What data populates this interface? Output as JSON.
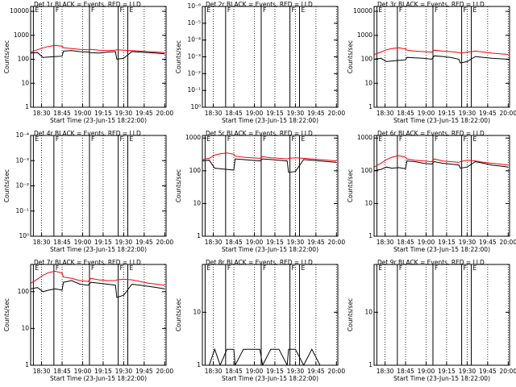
{
  "chart_data": [
    {
      "type": "line",
      "title": "Det 1r BLACK = Events, RED = LLD",
      "ylabel": "Counts/sec",
      "xlabel": "Start Time (23-Jun-15 18:22:00)",
      "log_y": true,
      "xlim": [
        "18:22",
        "20:01"
      ],
      "xticks": [
        "18:30",
        "18:45",
        "19:00",
        "19:15",
        "19:30",
        "19:45",
        "20:00"
      ],
      "ylim": [
        1,
        16000
      ],
      "yticks": [
        1,
        10,
        100,
        1000,
        10000
      ],
      "x": [
        "18:22",
        "18:27",
        "18:31",
        "18:35",
        "18:40",
        "18:45",
        "18:46",
        "18:52",
        "18:58",
        "19:04",
        "19:06",
        "19:12",
        "19:18",
        "19:24",
        "19:25",
        "19:30",
        "19:36",
        "19:42",
        "19:48",
        "19:54",
        "20:00"
      ],
      "series": [
        {
          "name": "Events",
          "color": "#000000",
          "values": [
            180,
            190,
            120,
            125,
            130,
            135,
            220,
            230,
            210,
            200,
            190,
            180,
            200,
            210,
            100,
            110,
            210,
            200,
            190,
            180,
            170
          ]
        },
        {
          "name": "LLD",
          "color": "#ff0000",
          "values": [
            200,
            250,
            300,
            340,
            380,
            350,
            300,
            280,
            260,
            250,
            260,
            240,
            230,
            240,
            250,
            240,
            230,
            220,
            210,
            200,
            190
          ]
        }
      ],
      "annotations": [
        {
          "x": "18:24",
          "text": "E"
        },
        {
          "x": "18:39",
          "text": "F"
        },
        {
          "x": "19:05",
          "text": "F"
        },
        {
          "x": "19:26",
          "text": "F"
        },
        {
          "x": "19:33",
          "text": "E"
        }
      ]
    },
    {
      "type": "line",
      "title": "Det 2r BLACK = Events, RED = LLD",
      "ylabel": "Counts/sec",
      "xlabel": "Start Time (23-Jun-15 18:22:00)",
      "log_y": true,
      "xlim": [
        "18:22",
        "20:01"
      ],
      "xticks": [
        "18:30",
        "18:45",
        "19:00",
        "19:15",
        "19:30",
        "19:45",
        "20:00"
      ],
      "ylim": [
        1,
        1e-06
      ],
      "yticks": [
        {
          "value": 1,
          "label": "10⁰"
        },
        {
          "value": 0.1,
          "label": "10⁻¹"
        },
        {
          "value": 0.01,
          "label": "10⁻²"
        },
        {
          "value": 0.001,
          "label": "10⁻³"
        },
        {
          "value": 0.0001,
          "label": "10⁻⁴"
        },
        {
          "value": 1e-05,
          "label": "10⁻⁵"
        },
        {
          "value": 1e-06,
          "label": "10⁻⁶"
        }
      ],
      "x": [],
      "series": [],
      "annotations": [
        {
          "x": "18:24",
          "text": "E"
        },
        {
          "x": "18:39",
          "text": "F"
        },
        {
          "x": "19:05",
          "text": "F"
        },
        {
          "x": "19:26",
          "text": "F"
        },
        {
          "x": "19:33",
          "text": "E"
        }
      ]
    },
    {
      "type": "line",
      "title": "Det 3r BLACK = Events, RED = LLD",
      "ylabel": "Counts/sec",
      "xlabel": "Start Time (23-Jun-15 18:22:00)",
      "log_y": true,
      "xlim": [
        "18:22",
        "20:01"
      ],
      "xticks": [
        "18:30",
        "18:45",
        "19:00",
        "19:15",
        "19:30",
        "19:45",
        "20:00"
      ],
      "ylim": [
        1,
        16000
      ],
      "yticks": [
        1,
        10,
        100,
        1000,
        10000
      ],
      "x": [
        "18:22",
        "18:27",
        "18:31",
        "18:35",
        "18:40",
        "18:45",
        "18:46",
        "18:52",
        "18:58",
        "19:04",
        "19:06",
        "19:12",
        "19:18",
        "19:24",
        "19:25",
        "19:30",
        "19:36",
        "19:42",
        "19:48",
        "19:54",
        "20:00"
      ],
      "series": [
        {
          "name": "Events",
          "color": "#000000",
          "values": [
            100,
            110,
            80,
            85,
            90,
            95,
            120,
            115,
            110,
            100,
            140,
            130,
            120,
            100,
            70,
            80,
            130,
            120,
            110,
            105,
            100
          ]
        },
        {
          "name": "LLD",
          "color": "#ff0000",
          "values": [
            160,
            200,
            250,
            280,
            300,
            270,
            240,
            220,
            210,
            200,
            240,
            220,
            210,
            190,
            180,
            200,
            220,
            200,
            180,
            170,
            160
          ]
        }
      ],
      "annotations": [
        {
          "x": "18:24",
          "text": "E"
        },
        {
          "x": "18:39",
          "text": "F"
        },
        {
          "x": "19:05",
          "text": "F"
        },
        {
          "x": "19:26",
          "text": "F"
        },
        {
          "x": "19:33",
          "text": "E"
        }
      ]
    },
    {
      "type": "line",
      "title": "Det 4r BLACK = Events, RED = LLD",
      "ylabel": "Counts/sec",
      "xlabel": "Start Time (23-Jun-15 18:22:00)",
      "log_y": true,
      "xlim": [
        "18:22",
        "20:01"
      ],
      "xticks": [
        "18:30",
        "18:45",
        "19:00",
        "19:15",
        "19:30",
        "19:45",
        "20:00"
      ],
      "ylim": [
        1,
        0.0001
      ],
      "yticks": [
        {
          "value": 1,
          "label": "10⁰"
        },
        {
          "value": 0.1,
          "label": "10⁻¹"
        },
        {
          "value": 0.01,
          "label": "10⁻²"
        },
        {
          "value": 0.001,
          "label": "10⁻³"
        },
        {
          "value": 0.0001,
          "label": "10⁻⁴"
        }
      ],
      "x": [],
      "series": [],
      "annotations": [
        {
          "x": "18:24",
          "text": "E"
        },
        {
          "x": "18:39",
          "text": "F"
        },
        {
          "x": "19:05",
          "text": "F"
        },
        {
          "x": "19:26",
          "text": "F"
        },
        {
          "x": "19:33",
          "text": "E"
        }
      ]
    },
    {
      "type": "line",
      "title": "Det 5r BLACK = Events, RED = LLD",
      "ylabel": "Counts/sec",
      "xlabel": "Start Time (23-Jun-15 18:22:00)",
      "log_y": true,
      "xlim": [
        "18:22",
        "20:01"
      ],
      "xticks": [
        "18:30",
        "18:45",
        "19:00",
        "19:15",
        "19:30",
        "19:45",
        "20:00"
      ],
      "ylim": [
        1,
        1200
      ],
      "yticks": [
        1,
        10,
        100,
        1000
      ],
      "x": [
        "18:22",
        "18:27",
        "18:31",
        "18:35",
        "18:40",
        "18:45",
        "18:46",
        "18:52",
        "18:58",
        "19:04",
        "19:06",
        "19:12",
        "19:18",
        "19:24",
        "19:25",
        "19:30",
        "19:36",
        "19:42",
        "19:48",
        "19:54",
        "20:00"
      ],
      "series": [
        {
          "name": "Events",
          "color": "#000000",
          "values": [
            200,
            210,
            120,
            115,
            110,
            105,
            230,
            220,
            210,
            200,
            230,
            220,
            210,
            200,
            90,
            95,
            220,
            210,
            200,
            190,
            180
          ]
        },
        {
          "name": "LLD",
          "color": "#ff0000",
          "values": [
            220,
            240,
            300,
            330,
            350,
            320,
            280,
            260,
            250,
            240,
            270,
            250,
            240,
            230,
            240,
            250,
            240,
            230,
            220,
            210,
            200
          ]
        }
      ],
      "annotations": [
        {
          "x": "18:24",
          "text": "E"
        },
        {
          "x": "18:39",
          "text": "F"
        },
        {
          "x": "19:05",
          "text": "F"
        },
        {
          "x": "19:26",
          "text": "F"
        },
        {
          "x": "19:33",
          "text": "E"
        }
      ]
    },
    {
      "type": "line",
      "title": "Det 6r BLACK = Events, RED = LLD",
      "ylabel": "Counts/sec",
      "xlabel": "Start Time (23-Jun-15 18:22:00)",
      "log_y": true,
      "xlim": [
        "18:22",
        "20:01"
      ],
      "xticks": [
        "18:30",
        "18:45",
        "19:00",
        "19:15",
        "19:30",
        "19:45",
        "20:00"
      ],
      "ylim": [
        1,
        1200
      ],
      "yticks": [
        1,
        10,
        100,
        1000
      ],
      "x": [
        "18:22",
        "18:27",
        "18:31",
        "18:35",
        "18:40",
        "18:45",
        "18:46",
        "18:52",
        "18:58",
        "19:04",
        "19:06",
        "19:12",
        "19:18",
        "19:24",
        "19:25",
        "19:30",
        "19:36",
        "19:42",
        "19:48",
        "19:54",
        "20:00"
      ],
      "series": [
        {
          "name": "Events",
          "color": "#000000",
          "values": [
            100,
            110,
            130,
            120,
            125,
            115,
            200,
            190,
            170,
            160,
            190,
            170,
            160,
            150,
            120,
            130,
            190,
            170,
            150,
            140,
            130
          ]
        },
        {
          "name": "LLD",
          "color": "#ff0000",
          "values": [
            130,
            170,
            220,
            260,
            290,
            260,
            230,
            210,
            200,
            190,
            230,
            200,
            190,
            180,
            190,
            210,
            200,
            180,
            170,
            160,
            150
          ]
        }
      ],
      "annotations": [
        {
          "x": "18:24",
          "text": "E"
        },
        {
          "x": "18:39",
          "text": "F"
        },
        {
          "x": "19:05",
          "text": "F"
        },
        {
          "x": "19:26",
          "text": "F"
        },
        {
          "x": "19:33",
          "text": "E"
        }
      ]
    },
    {
      "type": "line",
      "title": "Det 7r BLACK = Events, RED = LLD",
      "ylabel": "Counts/sec",
      "xlabel": "Start Time (23-Jun-15 18:22:00)",
      "log_y": true,
      "xlim": [
        "18:22",
        "20:01"
      ],
      "xticks": [
        "18:30",
        "18:45",
        "19:00",
        "19:15",
        "19:30",
        "19:45",
        "20:00"
      ],
      "ylim": [
        1,
        550
      ],
      "yticks": [
        1,
        10,
        100
      ],
      "x": [
        "18:22",
        "18:27",
        "18:31",
        "18:35",
        "18:40",
        "18:45",
        "18:46",
        "18:52",
        "18:58",
        "19:04",
        "19:06",
        "19:12",
        "19:18",
        "19:24",
        "19:25",
        "19:30",
        "19:36",
        "19:42",
        "19:48",
        "19:54",
        "20:00"
      ],
      "series": [
        {
          "name": "Events",
          "color": "#000000",
          "values": [
            120,
            130,
            100,
            110,
            120,
            110,
            180,
            200,
            160,
            150,
            180,
            170,
            160,
            150,
            70,
            80,
            160,
            150,
            140,
            130,
            120
          ]
        },
        {
          "name": "LLD",
          "color": "#ff0000",
          "values": [
            170,
            220,
            280,
            330,
            360,
            320,
            250,
            230,
            200,
            190,
            230,
            210,
            200,
            200,
            210,
            220,
            210,
            190,
            170,
            160,
            150
          ]
        }
      ],
      "annotations": [
        {
          "x": "18:24",
          "text": "E"
        },
        {
          "x": "18:39",
          "text": "F"
        },
        {
          "x": "19:05",
          "text": "F"
        },
        {
          "x": "19:26",
          "text": "F"
        },
        {
          "x": "19:33",
          "text": "E"
        }
      ]
    },
    {
      "type": "line",
      "title": "Det 8r BLACK = Events, RED = LLD",
      "ylabel": "Counts/sec",
      "xlabel": "Start Time (23-Jun-15 18:22:00)",
      "log_y": true,
      "xlim": [
        "18:22",
        "20:01"
      ],
      "xticks": [
        "18:30",
        "18:45",
        "19:00",
        "19:15",
        "19:30",
        "19:45",
        "20:00"
      ],
      "ylim": [
        1,
        80
      ],
      "yticks": [
        1,
        10
      ],
      "x": [
        "18:22",
        "18:27",
        "18:31",
        "18:35",
        "18:40",
        "18:45",
        "18:46",
        "18:52",
        "18:58",
        "19:04",
        "19:06",
        "19:12",
        "19:18",
        "19:24",
        "19:25",
        "19:30",
        "19:36",
        "19:42",
        "19:48",
        "19:54",
        "20:00"
      ],
      "series": [
        {
          "name": "Events",
          "color": "#000000",
          "values": [
            1,
            1,
            2,
            1,
            2,
            2,
            1,
            2,
            2,
            2,
            1,
            2,
            2,
            1,
            2,
            2,
            1,
            2,
            1,
            1,
            1
          ]
        }
      ],
      "annotations": [
        {
          "x": "18:24",
          "text": "E"
        },
        {
          "x": "18:39",
          "text": "F"
        },
        {
          "x": "19:05",
          "text": "F"
        },
        {
          "x": "19:26",
          "text": "F"
        },
        {
          "x": "19:33",
          "text": "E"
        }
      ]
    },
    {
      "type": "line",
      "title": "Det 9r BLACK = Events, RED = LLD",
      "ylabel": "Counts/sec",
      "xlabel": "Start Time (23-Jun-15 18:22:00)",
      "log_y": true,
      "xlim": [
        "18:22",
        "20:01"
      ],
      "xticks": [
        "18:30",
        "18:45",
        "19:00",
        "19:15",
        "19:30",
        "19:45",
        "20:00"
      ],
      "ylim": [
        1,
        80
      ],
      "yticks": [
        1,
        10
      ],
      "x": [],
      "series": [],
      "annotations": [
        {
          "x": "18:24",
          "text": "E"
        },
        {
          "x": "18:39",
          "text": "F"
        },
        {
          "x": "19:05",
          "text": "F"
        },
        {
          "x": "19:26",
          "text": "F"
        },
        {
          "x": "19:33",
          "text": "E"
        }
      ]
    }
  ]
}
